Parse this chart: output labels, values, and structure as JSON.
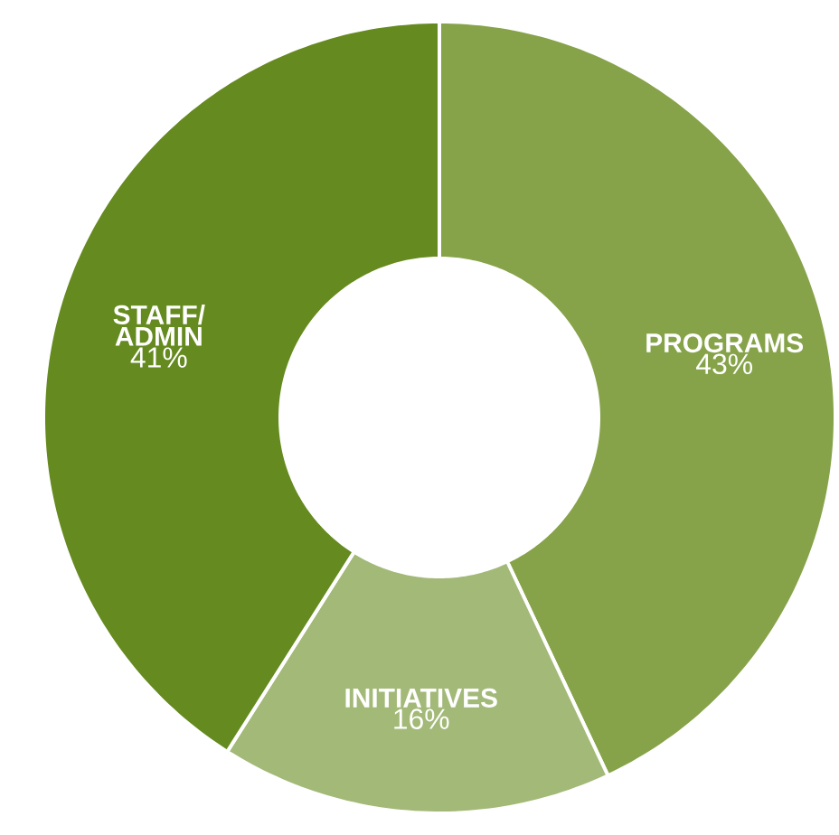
{
  "chart_data": {
    "type": "donut",
    "categories": [
      "PROGRAMS",
      "INITIATIVES",
      "STAFF/ ADMIN"
    ],
    "values": [
      43,
      16,
      41
    ],
    "value_labels": [
      "43%",
      "16%",
      "41%"
    ],
    "colors": [
      "#86a34a",
      "#a3b978",
      "#658a1f"
    ]
  }
}
